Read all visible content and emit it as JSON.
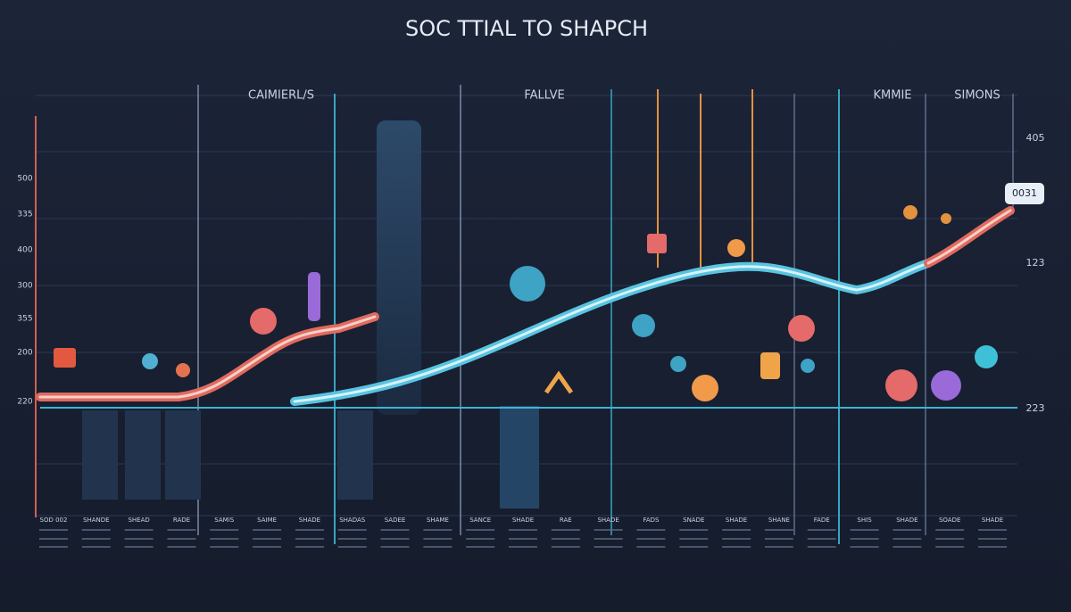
{
  "title": "SOC TTIAL TO SHAPCH",
  "sections": [
    "CAIMIERL/S",
    "FALLVE",
    "KMMIE",
    "SIMONS"
  ],
  "left_axis": [
    "500",
    "335",
    "400",
    "300",
    "355",
    "200",
    "220"
  ],
  "right_axis": [
    "405",
    "0031",
    "123",
    "223"
  ],
  "bottom_labels": [
    "SOD 002",
    "SHANDE",
    "SHEAD",
    "RADE",
    "SAMIS",
    "SAIME",
    "SHADE",
    "SHADAS",
    "SADEE",
    "SHAME",
    "SANCE",
    "SHADE",
    "RAE",
    "SHADE",
    "FADS",
    "SNADE",
    "SHADE",
    "SHANE",
    "FADE",
    "SHIS",
    "SHADE",
    "SOADE",
    "SHADE"
  ]
}
